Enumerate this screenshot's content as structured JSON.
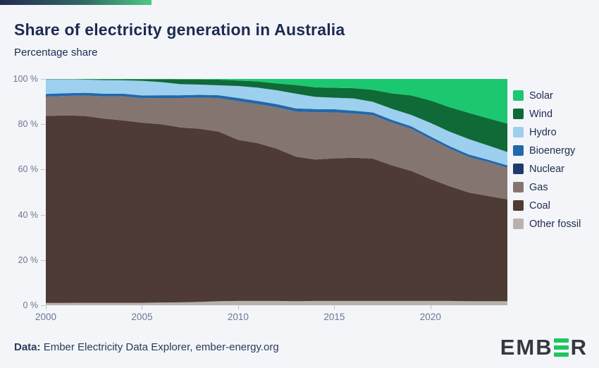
{
  "header": {
    "title": "Share of electricity generation in Australia",
    "subtitle": "Percentage share"
  },
  "footer": {
    "credit_label": "Data:",
    "credit_text": "Ember Electricity Data Explorer, ember-energy.org"
  },
  "logo": {
    "text_left": "EMB",
    "text_right": "R",
    "bar_color": "#1fc560",
    "text_color": "#33393f",
    "bar_count": 3
  },
  "theme": {
    "background": "#f3f5f9",
    "title_color": "#1d2b50",
    "axis_text_color": "#6b7691",
    "tick_color": "#bcc2d0",
    "accent_gradient": [
      "#262a51",
      "#4dc983"
    ]
  },
  "chart_data": {
    "type": "area",
    "stacked": true,
    "unit": "%",
    "title": "Share of electricity generation in Australia",
    "subtitle": "Percentage share",
    "ylim": [
      0,
      100
    ],
    "y_ticks": [
      100,
      80,
      60,
      40,
      20,
      0
    ],
    "y_tick_suffix": " %",
    "x_ticks": [
      2000,
      2005,
      2010,
      2015,
      2020
    ],
    "x_range": [
      2000,
      2024
    ],
    "grid": false,
    "legend_position": "right",
    "stack_order_bottom_to_top": [
      "Other fossil",
      "Coal",
      "Gas",
      "Nuclear",
      "Bioenergy",
      "Hydro",
      "Wind",
      "Solar"
    ],
    "x": [
      2000,
      2001,
      2002,
      2003,
      2004,
      2005,
      2006,
      2007,
      2008,
      2009,
      2010,
      2011,
      2012,
      2013,
      2014,
      2015,
      2016,
      2017,
      2018,
      2019,
      2020,
      2021,
      2022,
      2023,
      2024
    ],
    "series": [
      {
        "name": "Solar",
        "color": "#1bc870",
        "values": [
          0.1,
          0.1,
          0.1,
          0.1,
          0.1,
          0.1,
          0.1,
          0.2,
          0.2,
          0.3,
          0.7,
          1.1,
          2.0,
          2.7,
          3.7,
          3.9,
          4.1,
          4.8,
          6.4,
          7.3,
          9.5,
          12.5,
          15.0,
          17.4,
          19.7
        ]
      },
      {
        "name": "Wind",
        "color": "#0f6a37",
        "values": [
          0.1,
          0.1,
          0.2,
          0.4,
          0.5,
          0.7,
          1.3,
          2.1,
          2.3,
          2.5,
          2.4,
          2.7,
          3.0,
          3.8,
          4.2,
          4.4,
          4.5,
          5.3,
          6.8,
          8.6,
          9.9,
          10.8,
          11.6,
          12.0,
          12.6
        ]
      },
      {
        "name": "Hydro",
        "color": "#9dcfee",
        "values": [
          6.5,
          6.2,
          5.8,
          6.0,
          5.9,
          6.5,
          5.8,
          4.9,
          4.5,
          4.4,
          5.3,
          5.9,
          6.1,
          6.5,
          5.4,
          5.1,
          5.4,
          4.7,
          4.9,
          5.0,
          6.0,
          6.4,
          6.8,
          6.3,
          5.9
        ]
      },
      {
        "name": "Bioenergy",
        "color": "#2268aa",
        "values": [
          1.2,
          1.2,
          1.2,
          1.2,
          1.2,
          1.2,
          1.2,
          1.2,
          1.2,
          1.3,
          1.4,
          1.4,
          1.4,
          1.4,
          1.4,
          1.4,
          1.3,
          1.2,
          1.2,
          1.1,
          1.1,
          1.1,
          1.1,
          1.0,
          1.0
        ]
      },
      {
        "name": "Nuclear",
        "color": "#20396a",
        "values": [
          0,
          0,
          0,
          0,
          0,
          0,
          0,
          0,
          0,
          0,
          0,
          0,
          0,
          0,
          0,
          0,
          0,
          0,
          0,
          0,
          0,
          0,
          0,
          0,
          0
        ]
      },
      {
        "name": "Gas",
        "color": "#857571",
        "values": [
          8.6,
          8.6,
          9.0,
          9.8,
          10.6,
          10.8,
          11.6,
          13.0,
          13.8,
          14.8,
          17.1,
          17.2,
          18.3,
          19.9,
          20.9,
          20.3,
          19.5,
          19.2,
          18.9,
          18.6,
          17.7,
          16.6,
          15.7,
          15.0,
          14.0
        ]
      },
      {
        "name": "Coal",
        "color": "#4e3b35",
        "values": [
          82.6,
          82.9,
          82.6,
          81.4,
          80.6,
          79.6,
          78.8,
          77.3,
          76.5,
          74.9,
          71.2,
          69.8,
          67.3,
          63.9,
          62.5,
          63.0,
          63.3,
          62.9,
          59.9,
          57.5,
          53.9,
          50.7,
          48.0,
          46.5,
          45.0
        ]
      },
      {
        "name": "Other fossil",
        "color": "#b8b2ad",
        "values": [
          1.0,
          1.0,
          1.1,
          1.1,
          1.1,
          1.1,
          1.2,
          1.3,
          1.5,
          1.8,
          1.9,
          1.9,
          1.9,
          1.8,
          1.9,
          1.9,
          1.9,
          1.9,
          1.9,
          1.9,
          1.9,
          1.9,
          1.8,
          1.8,
          1.8
        ]
      }
    ]
  }
}
